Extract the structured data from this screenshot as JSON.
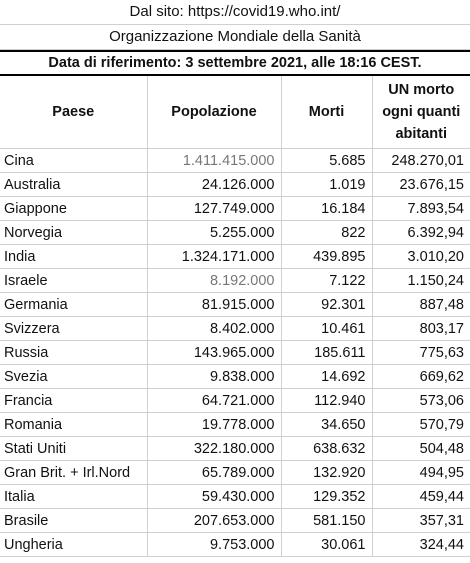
{
  "header": {
    "source": "Dal sito: https://covid19.who.int/",
    "organization": "Organizzazione Mondiale della Sanità",
    "reference_date": "Data di riferimento: 3 settembre 2021, alle 18:16 CEST."
  },
  "columns": {
    "country": "Paese",
    "population": "Popolazione",
    "deaths": "Morti",
    "ratio_line1": "UN morto",
    "ratio_line2": "ogni quanti",
    "ratio_line3": "abitanti"
  },
  "rows": [
    {
      "country": "Cina",
      "population": "1.411.415.000",
      "deaths": "5.685",
      "ratio": "248.270,01",
      "grey": true
    },
    {
      "country": "Australia",
      "population": "24.126.000",
      "deaths": "1.019",
      "ratio": "23.676,15",
      "grey": false
    },
    {
      "country": "Giappone",
      "population": "127.749.000",
      "deaths": "16.184",
      "ratio": "7.893,54",
      "grey": false
    },
    {
      "country": "Norvegia",
      "population": "5.255.000",
      "deaths": "822",
      "ratio": "6.392,94",
      "grey": false
    },
    {
      "country": "India",
      "population": "1.324.171.000",
      "deaths": "439.895",
      "ratio": "3.010,20",
      "grey": false
    },
    {
      "country": "Israele",
      "population": "8.192.000",
      "deaths": "7.122",
      "ratio": "1.150,24",
      "grey": true
    },
    {
      "country": "Germania",
      "population": "81.915.000",
      "deaths": "92.301",
      "ratio": "887,48",
      "grey": false
    },
    {
      "country": "Svizzera",
      "population": "8.402.000",
      "deaths": "10.461",
      "ratio": "803,17",
      "grey": false
    },
    {
      "country": "Russia",
      "population": "143.965.000",
      "deaths": "185.611",
      "ratio": "775,63",
      "grey": false
    },
    {
      "country": "Svezia",
      "population": "9.838.000",
      "deaths": "14.692",
      "ratio": "669,62",
      "grey": false
    },
    {
      "country": "Francia",
      "population": "64.721.000",
      "deaths": "112.940",
      "ratio": "573,06",
      "grey": false
    },
    {
      "country": "Romania",
      "population": "19.778.000",
      "deaths": "34.650",
      "ratio": "570,79",
      "grey": false
    },
    {
      "country": "Stati Uniti",
      "population": "322.180.000",
      "deaths": "638.632",
      "ratio": "504,48",
      "grey": false
    },
    {
      "country": "Gran Brit. + Irl.Nord",
      "population": "65.789.000",
      "deaths": "132.920",
      "ratio": "494,95",
      "grey": false
    },
    {
      "country": "Italia",
      "population": "59.430.000",
      "deaths": "129.352",
      "ratio": "459,44",
      "grey": false
    },
    {
      "country": "Brasile",
      "population": "207.653.000",
      "deaths": "581.150",
      "ratio": "357,31",
      "grey": false
    },
    {
      "country": "Ungheria",
      "population": "9.753.000",
      "deaths": "30.061",
      "ratio": "324,44",
      "grey": false
    }
  ]
}
